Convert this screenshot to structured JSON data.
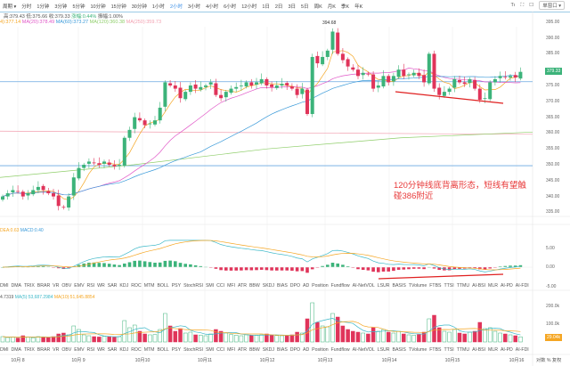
{
  "toolbar": {
    "period": "周期 ▾",
    "items": [
      "分时",
      "1分钟",
      "3分钟",
      "5分钟",
      "10分钟",
      "15分钟",
      "30分钟",
      "1小时",
      "2小时",
      "3小时",
      "4小时",
      "6小时",
      "12小时",
      "1日",
      "2日",
      "3日",
      "5日",
      "周K",
      "月K",
      "季K",
      "年K"
    ],
    "active": "2小时",
    "window": "单窗口 ▾",
    "icons": [
      "text-size-icon",
      "fullscreen-icon",
      "window-icon"
    ]
  },
  "info": {
    "high": "高:379.43",
    "low": "低:375.66",
    "close": "收:379.33",
    "change": "涨幅:0.44%",
    "amplitude": "振幅:1.00%"
  },
  "ma": {
    "ma5": "4):377.14",
    "ma20": "MA(20):378.49",
    "ma60": "MA(60):373.27",
    "ma120": "MA(120):360.38",
    "ma250": "MA(250):359.73"
  },
  "colors": {
    "up": "#3cb37a",
    "down": "#e0345a",
    "ma5": "#f5a623",
    "ma20": "#e056c7",
    "ma60": "#3a9ad9",
    "ma120": "#8fce6a",
    "ma250": "#f2a0b0",
    "hline": "#6aa8e0",
    "annotation": "#e02020"
  },
  "price_axis": [
    "395.00",
    "390.00",
    "385.00",
    "375.00",
    "370.00",
    "365.00",
    "360.00",
    "355.00",
    "350.00",
    "345.00",
    "340.00",
    "335.00"
  ],
  "last_price": "379.33",
  "peak_label": "394.68",
  "annotation": "120分钟线底背离形态，短线有望触碰386附近",
  "macd": {
    "label_dea": "DEA:0.63",
    "label_macd": "MACD:0.40",
    "axis": [
      "5.00",
      "0.00",
      "-5.00"
    ]
  },
  "volume": {
    "label_vol": "4.7319",
    "label_ma5": "MA(5):53,687.2984",
    "label_ma10": "MA(10):51,645.8854",
    "axis": [
      "200.0k",
      "100.0k"
    ],
    "last": "29.04k"
  },
  "indicator_tabs": [
    "DMI",
    "DMA",
    "TRIX",
    "BRAR",
    "VR",
    "OBV",
    "EMV",
    "RSI",
    "WR",
    "SAR",
    "KDJ",
    "ROC",
    "MTM",
    "BOLL",
    "PSY",
    "StochRSI",
    "SMI",
    "CCI",
    "MFI",
    "ATR",
    "BBW",
    "SKDJ",
    "BIAS",
    "DPO",
    "AD",
    "Position",
    "Fundflow",
    "AI-NetVOL",
    "LSUR",
    "BASIS",
    "TVolume",
    "FTBS",
    "TTSI",
    "TTMU",
    "AI-BSI",
    "MLR",
    "AI-PD",
    "AI-FDI"
  ],
  "dates": [
    "10月 8",
    "10月 9",
    "10月10",
    "10月11",
    "10月12",
    "10月13",
    "10月14",
    "10月15",
    "10月16"
  ],
  "footer": {
    "log": "对数",
    "percent": "%",
    "adjust": "复权"
  },
  "chart_data": {
    "type": "candlestick",
    "closes": [
      340,
      341,
      342,
      341.5,
      340,
      341,
      342,
      343,
      342,
      341,
      340,
      337,
      336.5,
      340,
      346,
      349,
      350,
      351,
      350.5,
      350,
      351,
      350,
      349.5,
      350,
      358.5,
      361,
      365,
      364,
      362.5,
      363,
      364,
      368,
      376,
      375,
      374,
      371,
      373,
      375,
      374,
      374.5,
      375,
      376,
      372,
      371,
      373,
      374,
      374.5,
      375,
      376,
      375,
      376,
      377,
      375,
      374.5,
      375,
      375.5,
      375,
      374,
      372,
      374,
      366,
      384,
      382,
      384,
      386,
      392,
      385,
      383,
      381,
      380,
      378,
      379,
      378.5,
      374,
      375,
      378,
      376,
      378,
      380,
      378,
      378.5,
      379,
      378,
      376,
      385,
      374,
      372,
      373,
      374,
      377,
      376,
      375.5,
      377,
      374,
      370.5,
      371,
      376,
      377,
      378,
      377.5,
      378,
      377.5,
      379.3
    ],
    "volumes_k": [
      30,
      25,
      28,
      22,
      35,
      26,
      24,
      30,
      28,
      25,
      30,
      45,
      50,
      40,
      90,
      70,
      40,
      35,
      30,
      28,
      32,
      30,
      27,
      30,
      120,
      80,
      95,
      60,
      45,
      40,
      42,
      70,
      160,
      90,
      60,
      75,
      50,
      55,
      40,
      38,
      35,
      45,
      70,
      60,
      50,
      42,
      38,
      35,
      40,
      36,
      38,
      40,
      45,
      38,
      36,
      35,
      34,
      40,
      55,
      50,
      130,
      220,
      110,
      90,
      85,
      160,
      140,
      90,
      70,
      60,
      55,
      50,
      45,
      80,
      60,
      70,
      55,
      50,
      60,
      45,
      40,
      38,
      42,
      55,
      130,
      150,
      80,
      60,
      55,
      70,
      50,
      45,
      55,
      60,
      110,
      75,
      80,
      60,
      50,
      45,
      40,
      35,
      29.04
    ],
    "ylim": [
      335,
      396
    ],
    "horizontal_lines": [
      376.2,
      349.7
    ]
  }
}
